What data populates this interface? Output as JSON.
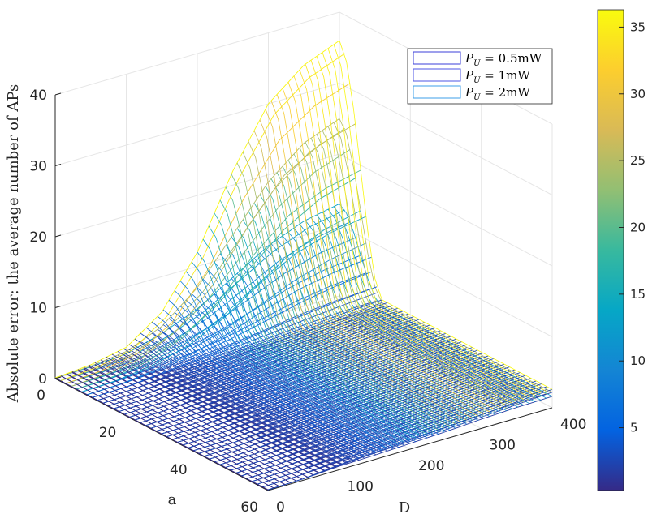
{
  "chart_data": {
    "type": "surface-3d-mesh",
    "zlabel": "Absolute error: the average number of APs",
    "xlabel": "a",
    "ylabel": "D",
    "x_ticks": [
      "0",
      "20",
      "40",
      "60"
    ],
    "y_ticks": [
      "0",
      "100",
      "200",
      "300",
      "400"
    ],
    "z_ticks": [
      "0",
      "10",
      "20",
      "30",
      "40"
    ],
    "xlim": [
      0,
      60
    ],
    "ylim": [
      0,
      400
    ],
    "zlim": [
      0,
      40
    ],
    "colorbar": {
      "min": 0.3,
      "max": 36.3,
      "ticks": [
        "5",
        "10",
        "15",
        "20",
        "25",
        "30",
        "35"
      ],
      "colormap": "parula"
    },
    "legend": {
      "location": "top-right",
      "entries": [
        "P_U = 0.5mW",
        "P_U = 1mW",
        "P_U = 2mW"
      ]
    },
    "series": [
      {
        "name": "P_U = 0.5mW",
        "D": [
          0,
          50,
          100,
          150,
          200,
          250,
          300,
          350,
          400
        ],
        "error_at_a0": [
          0.1,
          0.2,
          0.6,
          2,
          4,
          7,
          10,
          12,
          13
        ],
        "error_at_a60": [
          0.1,
          0.2,
          0.5,
          0.6,
          0.8,
          1.0,
          1.3,
          1.5,
          1.6
        ]
      },
      {
        "name": "P_U = 1mW",
        "D": [
          0,
          50,
          100,
          150,
          200,
          250,
          300,
          350,
          400
        ],
        "error_at_a0": [
          0.1,
          0.3,
          0.9,
          3,
          7,
          13,
          19,
          23,
          25
        ],
        "error_at_a60": [
          0.1,
          0.2,
          0.6,
          0.9,
          1.1,
          1.3,
          1.6,
          1.9,
          2.2
        ]
      },
      {
        "name": "P_U = 2mW",
        "D": [
          0,
          50,
          100,
          150,
          200,
          250,
          300,
          350,
          400
        ],
        "error_at_a0": [
          0.1,
          0.5,
          1.5,
          5,
          12,
          22,
          30,
          34,
          36
        ],
        "error_at_a60": [
          0.1,
          0.2,
          0.7,
          1.0,
          1.3,
          1.6,
          1.9,
          2.3,
          2.6
        ]
      }
    ]
  }
}
